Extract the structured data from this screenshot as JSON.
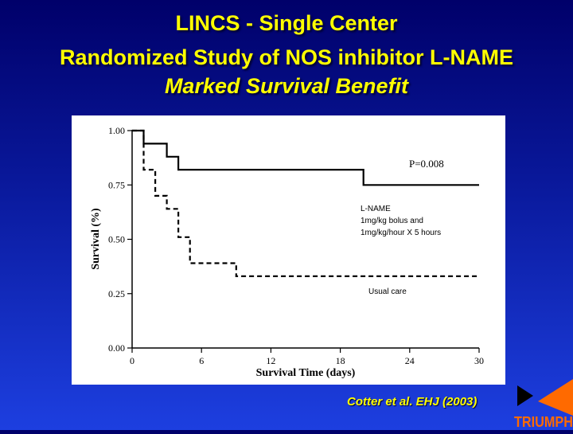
{
  "slide": {
    "title_line1": "LINCS - Single Center",
    "title_line2": "Randomized Study of NOS inhibitor L-NAME",
    "title_line3": "Marked Survival Benefit",
    "citation": "Cotter et al. EHJ (2003)",
    "logo_text": "TRIUMPH",
    "colors": {
      "background": "#0a1a9e",
      "title": "#ffff00",
      "logo_orange": "#ff6a00"
    }
  },
  "chart_data": {
    "type": "line",
    "xlabel": "Survival Time (days)",
    "ylabel": "Survival (%)",
    "xlim": [
      0,
      30
    ],
    "ylim": [
      0,
      1
    ],
    "x_ticks": [
      0,
      6,
      12,
      18,
      24,
      30
    ],
    "x_tick_labels": [
      "0",
      "6",
      "12",
      "18",
      "24",
      "30"
    ],
    "y_ticks": [
      0,
      0.25,
      0.5,
      0.75,
      1
    ],
    "y_tick_labels": [
      "0.00",
      "0.25",
      "0.50",
      "0.75",
      "1.00"
    ],
    "grid": false,
    "annotations": {
      "p_value": "P=0.008",
      "lname_label": [
        "L-NAME",
        "1mg/kg bolus and",
        "1mg/kg/hour X 5 hours"
      ],
      "usual_label": "Usual care"
    },
    "series": [
      {
        "name": "L-NAME",
        "style": "solid",
        "x": [
          0,
          1,
          1,
          3,
          3,
          4,
          4,
          20,
          20,
          30
        ],
        "y": [
          1.0,
          1.0,
          0.94,
          0.94,
          0.88,
          0.88,
          0.82,
          0.82,
          0.75,
          0.75
        ]
      },
      {
        "name": "Usual care",
        "style": "dashed",
        "x": [
          0,
          1,
          1,
          2,
          2,
          3,
          3,
          4,
          4,
          5,
          5,
          9,
          9,
          30
        ],
        "y": [
          1.0,
          1.0,
          0.82,
          0.82,
          0.7,
          0.7,
          0.64,
          0.64,
          0.51,
          0.51,
          0.39,
          0.39,
          0.33,
          0.33
        ]
      }
    ]
  }
}
